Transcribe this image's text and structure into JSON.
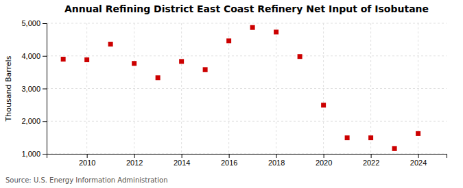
{
  "chart_data": {
    "type": "scatter",
    "title": "Annual Refining District East Coast Refinery Net Input of Isobutane",
    "ylabel": "Thousand Barrels",
    "annotations": [
      "Source: U.S. Energy Information Administration"
    ],
    "x": [
      2009,
      2010,
      2011,
      2012,
      2013,
      2014,
      2015,
      2016,
      2017,
      2018,
      2019,
      2020,
      2021,
      2022,
      2023,
      2024
    ],
    "values": [
      3900,
      3880,
      4360,
      3770,
      3330,
      3830,
      3580,
      4460,
      4870,
      4730,
      3980,
      2490,
      1490,
      1490,
      1160,
      1620
    ],
    "color": "#cc0000",
    "marker": "square",
    "grid": true,
    "xlim": [
      2008.3,
      2025.2
    ],
    "xticks": [
      2010,
      2012,
      2014,
      2016,
      2018,
      2020,
      2022,
      2024
    ],
    "ylim": [
      1000,
      5000
    ],
    "yticks": [
      {
        "value": 1000,
        "label": "1,000"
      },
      {
        "value": 2000,
        "label": "2,000"
      },
      {
        "value": 3000,
        "label": "3,000"
      },
      {
        "value": 4000,
        "label": "4,000"
      },
      {
        "value": 5000,
        "label": "5,000"
      }
    ]
  }
}
